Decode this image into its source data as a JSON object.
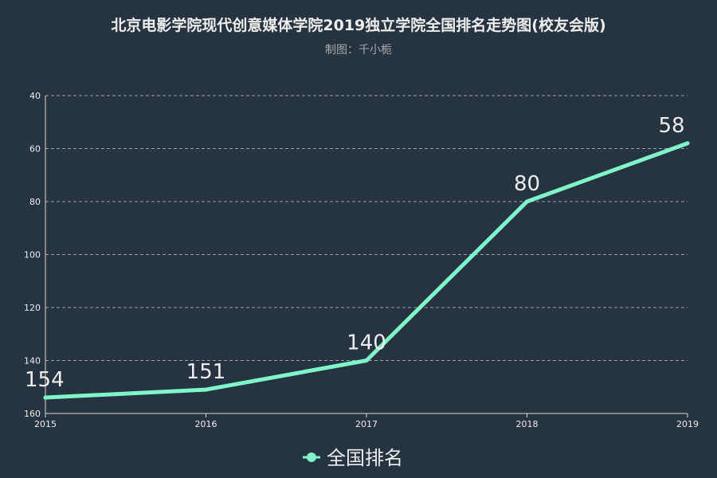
{
  "chart_data": {
    "type": "line",
    "title": "北京电影学院现代创意媒体学院2019独立学院全国排名走势图(校友会版)",
    "subtitle": "制图：千小栀",
    "categories": [
      "2015",
      "2016",
      "2017",
      "2018",
      "2019"
    ],
    "series": [
      {
        "name": "全国排名",
        "values": [
          154,
          151,
          140,
          80,
          58
        ],
        "color": "#7ff5c8"
      }
    ],
    "ylim": [
      40,
      160
    ],
    "y_inverted": true,
    "yticks": [
      "40",
      "60",
      "80",
      "100",
      "120",
      "140",
      "160"
    ],
    "grid": true,
    "legend": "bottom-center"
  }
}
